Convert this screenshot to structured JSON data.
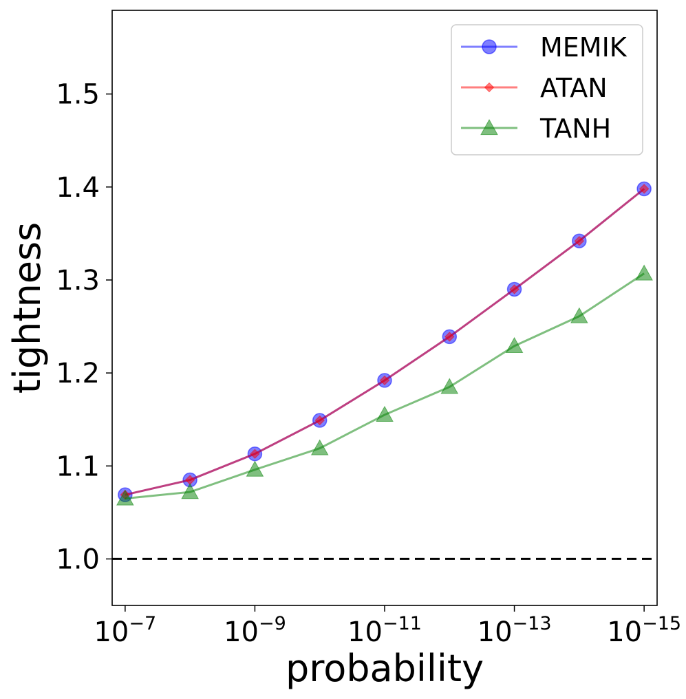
{
  "chart_data": {
    "type": "line",
    "title": "",
    "xlabel": "probability",
    "ylabel": "tightness",
    "x_exponents": [
      7,
      8,
      9,
      10,
      11,
      12,
      13,
      14,
      15
    ],
    "x_tick_exponents": [
      7,
      9,
      11,
      13,
      15
    ],
    "x_tick_base": "10",
    "x_tick_exponent_labels": [
      "−7",
      "−9",
      "−11",
      "−13",
      "−15"
    ],
    "ylim": [
      0.95,
      1.59
    ],
    "y_ticks": [
      1.0,
      1.1,
      1.2,
      1.3,
      1.4,
      1.5
    ],
    "y_tick_labels": [
      "1.0",
      "1.1",
      "1.2",
      "1.3",
      "1.4",
      "1.5"
    ],
    "reference_line": {
      "y": 1.0,
      "style": "dashed",
      "color": "#000000"
    },
    "grid": false,
    "legend_position": "top-right",
    "series": [
      {
        "name": "MEMIK",
        "color": "#0000ff",
        "marker": "circle",
        "values": [
          1.069,
          1.085,
          1.113,
          1.149,
          1.192,
          1.239,
          1.29,
          1.342,
          1.398
        ]
      },
      {
        "name": "ATAN",
        "color": "#ff0000",
        "marker": "diamond",
        "values": [
          1.069,
          1.085,
          1.113,
          1.149,
          1.192,
          1.239,
          1.29,
          1.342,
          1.398
        ]
      },
      {
        "name": "TANH",
        "color": "#008000",
        "marker": "triangle",
        "values": [
          1.065,
          1.072,
          1.096,
          1.119,
          1.155,
          1.185,
          1.229,
          1.261,
          1.307
        ]
      }
    ]
  }
}
